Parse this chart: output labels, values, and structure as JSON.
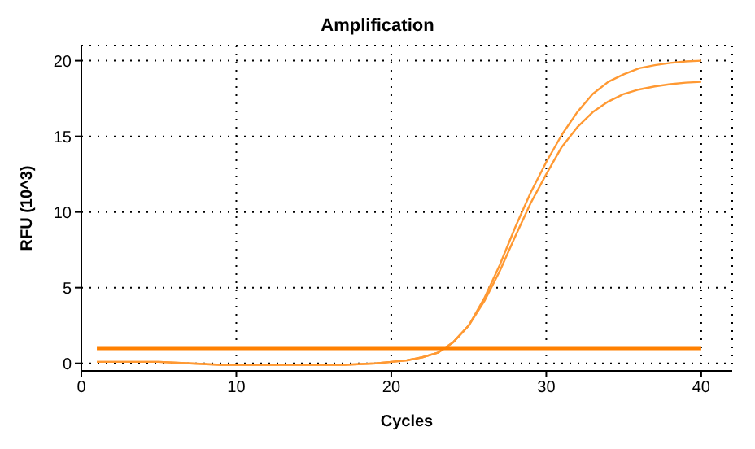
{
  "chart_data": {
    "type": "line",
    "title": "Amplification",
    "xlabel": "Cycles",
    "ylabel": "RFU (10^3)",
    "xlim": [
      0,
      42
    ],
    "ylim": [
      -0.5,
      21
    ],
    "xticks": [
      0,
      10,
      20,
      30,
      40
    ],
    "yticks": [
      0,
      5,
      10,
      15,
      20
    ],
    "grid": true,
    "marker": "none",
    "line_style": "solid",
    "series": [
      {
        "color": "#ff9933",
        "x": [
          1,
          3,
          5,
          7,
          9,
          11,
          13,
          15,
          17,
          19,
          20,
          21,
          22,
          23,
          24,
          25,
          26,
          27,
          28,
          29,
          30,
          31,
          32,
          33,
          34,
          35,
          36,
          37,
          38,
          39,
          40
        ],
        "values": [
          0.1,
          0.1,
          0.1,
          0.0,
          -0.1,
          -0.1,
          -0.1,
          -0.1,
          -0.1,
          0.0,
          0.1,
          0.2,
          0.4,
          0.7,
          1.4,
          2.5,
          4.3,
          6.5,
          9.0,
          11.3,
          13.3,
          15.1,
          16.6,
          17.8,
          18.6,
          19.1,
          19.5,
          19.7,
          19.85,
          19.95,
          20.0
        ]
      },
      {
        "color": "#ff9933",
        "x": [
          1,
          3,
          5,
          7,
          9,
          11,
          13,
          15,
          17,
          19,
          20,
          21,
          22,
          23,
          24,
          25,
          26,
          27,
          28,
          29,
          30,
          31,
          32,
          33,
          34,
          35,
          36,
          37,
          38,
          39,
          40
        ],
        "values": [
          0.1,
          0.1,
          0.1,
          0.0,
          -0.1,
          -0.1,
          -0.1,
          -0.1,
          -0.1,
          0.0,
          0.1,
          0.2,
          0.4,
          0.7,
          1.4,
          2.5,
          4.1,
          6.1,
          8.4,
          10.6,
          12.5,
          14.3,
          15.6,
          16.6,
          17.3,
          17.8,
          18.1,
          18.3,
          18.45,
          18.55,
          18.6
        ]
      },
      {
        "color": "#ff8000",
        "x": [
          1,
          40
        ],
        "values": [
          1,
          1
        ]
      }
    ]
  }
}
